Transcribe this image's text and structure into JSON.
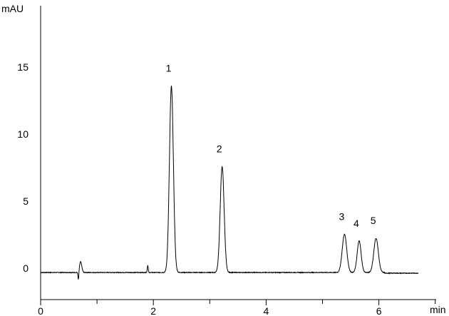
{
  "chart_data": {
    "type": "line",
    "title": "",
    "xlabel": "min",
    "ylabel": "mAU",
    "xlim": [
      0,
      7
    ],
    "ylim": [
      -2,
      20
    ],
    "x_ticks": [
      0,
      2,
      4,
      6
    ],
    "x_minor_ticks": [
      1,
      3,
      5,
      7
    ],
    "y_ticks": [
      0,
      5,
      10,
      15
    ],
    "x_tick_labels": [
      "0",
      "2",
      "4",
      "6"
    ],
    "y_tick_labels": [
      "0",
      "5",
      "10",
      "15"
    ],
    "grid": false,
    "trace_range": [
      0,
      6.7
    ],
    "peaks": [
      {
        "label": "1",
        "time": 2.32,
        "height": 13.9,
        "width": 0.035
      },
      {
        "label": "2",
        "time": 3.22,
        "height": 7.9,
        "width": 0.035
      },
      {
        "label": "3",
        "time": 5.39,
        "height": 2.85,
        "width": 0.04
      },
      {
        "label": "4",
        "time": 5.65,
        "height": 2.35,
        "width": 0.035
      },
      {
        "label": "5",
        "time": 5.95,
        "height": 2.55,
        "width": 0.04
      }
    ],
    "disturbances": [
      {
        "time": 0.68,
        "min": -0.6,
        "max": 0.8
      },
      {
        "time": 1.9,
        "max": 0.55
      }
    ],
    "line_color": "#000000"
  }
}
